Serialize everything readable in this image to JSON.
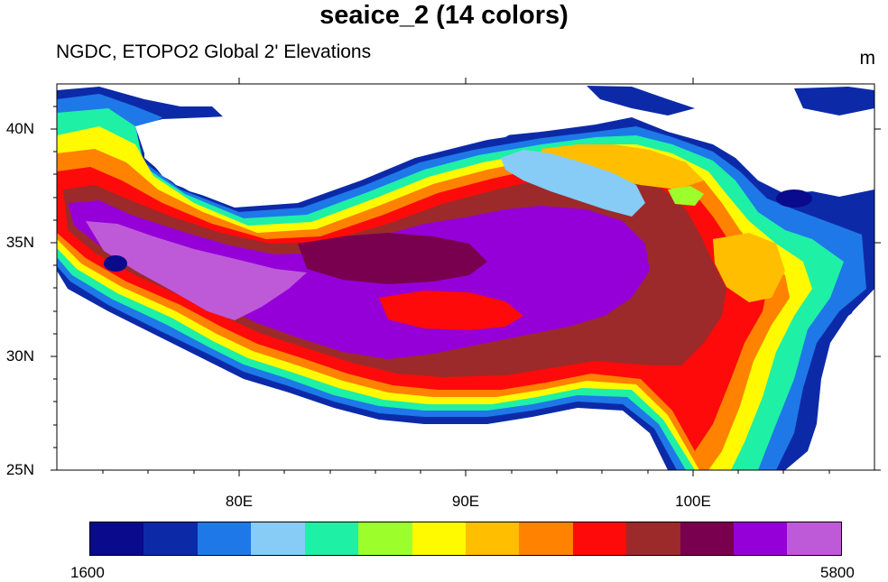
{
  "title": "seaice_2 (14 colors)",
  "subtitle": "NGDC, ETOPO2 Global 2' Elevations",
  "units": "m",
  "lat_labels": [
    "40N",
    "35N",
    "30N",
    "25N"
  ],
  "lon_labels": [
    "80E",
    "90E",
    "100E"
  ],
  "legend": {
    "min_label": "1600",
    "max_label": "5800",
    "colors": [
      "#0a0a8c",
      "#0c2aa8",
      "#1e78e8",
      "#86ccf6",
      "#1ef0a6",
      "#9cff2c",
      "#fffa00",
      "#ffbe00",
      "#ff8200",
      "#ff0a0a",
      "#9c2a2a",
      "#78004e",
      "#9600d8",
      "#be5ad8"
    ]
  },
  "map": {
    "lat_range": [
      25,
      42
    ],
    "lon_range": [
      72,
      108
    ]
  }
}
